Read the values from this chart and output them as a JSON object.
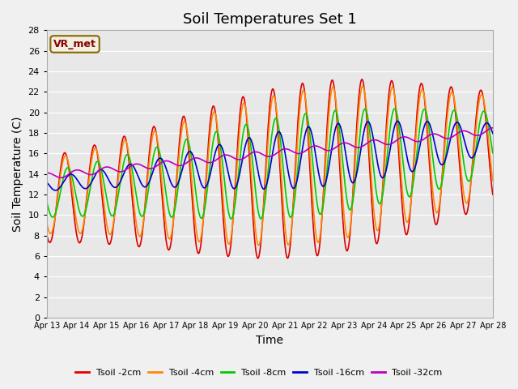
{
  "title": "Soil Temperatures Set 1",
  "xlabel": "Time",
  "ylabel": "Soil Temperature (C)",
  "ylim": [
    0,
    28
  ],
  "yticks": [
    0,
    2,
    4,
    6,
    8,
    10,
    12,
    14,
    16,
    18,
    20,
    22,
    24,
    26,
    28
  ],
  "x_labels": [
    "Apr 13",
    "Apr 14",
    "Apr 15",
    "Apr 16",
    "Apr 17",
    "Apr 18",
    "Apr 19",
    "Apr 20",
    "Apr 21",
    "Apr 22",
    "Apr 23",
    "Apr 24",
    "Apr 25",
    "Apr 26",
    "Apr 27",
    "Apr 28"
  ],
  "series_colors": [
    "#dd0000",
    "#ff8800",
    "#00cc00",
    "#0000cc",
    "#bb00bb"
  ],
  "series_labels": [
    "Tsoil -2cm",
    "Tsoil -4cm",
    "Tsoil -8cm",
    "Tsoil -16cm",
    "Tsoil -32cm"
  ],
  "legend_label": "VR_met",
  "plot_bg_color": "#e8e8e8",
  "title_fontsize": 13,
  "axis_fontsize": 10,
  "tick_fontsize": 8
}
